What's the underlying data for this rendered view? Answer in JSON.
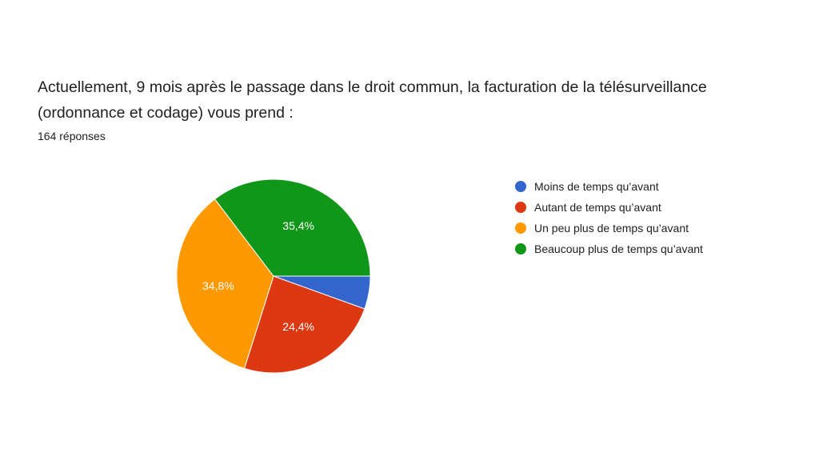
{
  "question": {
    "title": "Actuellement, 9 mois après le passage dans le droit commun, la facturation de la télésurveillance (ordonnance et codage) vous prend :",
    "response_count": "164 réponses"
  },
  "chart_data": {
    "type": "pie",
    "title": "",
    "categories": [
      "Moins de temps qu’avant",
      "Autant de temps qu’avant",
      "Un peu plus de temps qu’avant",
      "Beaucoup plus de temps qu’avant"
    ],
    "values": [
      5.5,
      24.4,
      34.8,
      35.4
    ],
    "data_labels": [
      "",
      "24,4%",
      "34,8%",
      "35,4%"
    ],
    "colors": [
      "#3366cc",
      "#dc3912",
      "#ff9900",
      "#109618"
    ],
    "legend_position": "right",
    "start_angle_deg": 90,
    "direction": "clockwise"
  }
}
